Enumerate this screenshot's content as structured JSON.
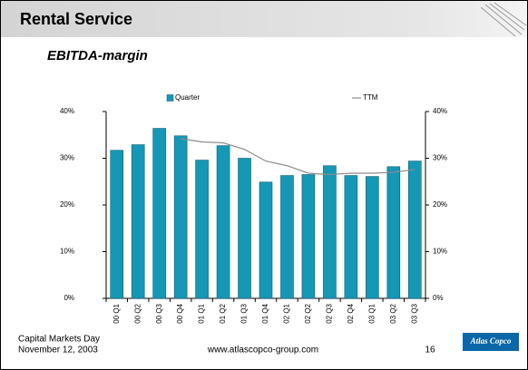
{
  "slide": {
    "title": "Rental Service",
    "subtitle": "EBITDA-margin"
  },
  "footer": {
    "event": "Capital Markets Day",
    "date": "November 12, 2003",
    "url": "www.atlascopco-group.com",
    "page": "16",
    "logo": "Atlas Copco"
  },
  "chart_data": {
    "type": "bar",
    "categories": [
      "00 Q1",
      "00 Q2",
      "00 Q3",
      "00 Q4",
      "01 Q1",
      "01 Q2",
      "01 Q3",
      "01 Q4",
      "02 Q1",
      "02 Q2",
      "02 Q3",
      "02 Q4",
      "03 Q1",
      "03 Q2",
      "03 Q3"
    ],
    "series": [
      {
        "name": "Quarter",
        "type": "bar",
        "color": "#1598b6",
        "values": [
          31.7,
          32.9,
          36.4,
          34.8,
          29.6,
          32.7,
          30.0,
          24.9,
          26.3,
          26.5,
          28.4,
          26.3,
          26.1,
          28.2,
          29.4
        ]
      },
      {
        "name": "TTM",
        "type": "line",
        "axis": "y2",
        "color": "#8c8c8c",
        "values": [
          null,
          null,
          null,
          34.2,
          33.5,
          33.3,
          31.9,
          29.4,
          28.4,
          26.8,
          26.5,
          26.8,
          26.8,
          27.0,
          27.6
        ]
      }
    ],
    "ylim": [
      0,
      40
    ],
    "yticks": [
      {
        "value": 0,
        "label": "0%"
      },
      {
        "value": 10,
        "label": "10%"
      },
      {
        "value": 20,
        "label": "20%"
      },
      {
        "value": 30,
        "label": "30%"
      },
      {
        "value": 40,
        "label": "40%"
      }
    ],
    "y2lim": [
      0,
      40
    ],
    "y2ticks": [
      {
        "value": 0,
        "label": "0%"
      },
      {
        "value": 10,
        "label": "10%"
      },
      {
        "value": 20,
        "label": "20%"
      },
      {
        "value": 30,
        "label": "30%"
      },
      {
        "value": 40,
        "label": "40%"
      }
    ],
    "grid": false,
    "legend": "top"
  }
}
